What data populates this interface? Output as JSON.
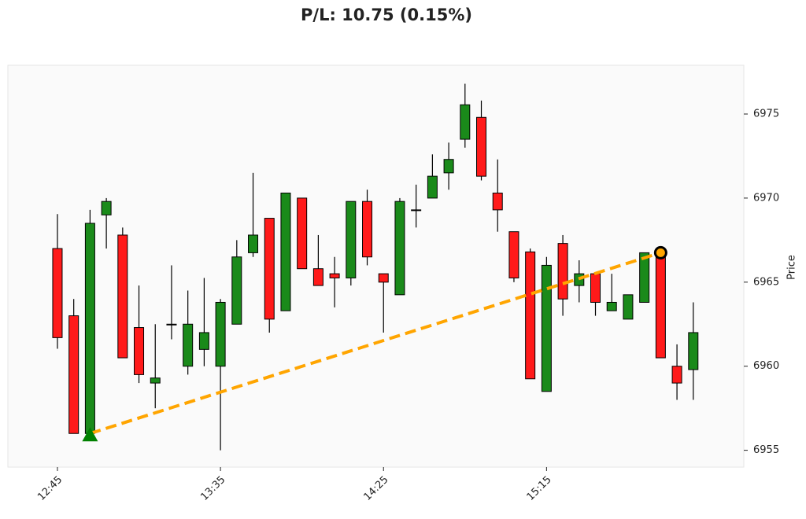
{
  "chart_data": {
    "type": "candlestick",
    "title": "P/L: 10.75 (0.15%)",
    "ylabel": "Price",
    "categories": [
      "12:45",
      null,
      null,
      null,
      null,
      null,
      null,
      null,
      null,
      null,
      "13:35",
      null,
      null,
      null,
      null,
      null,
      null,
      null,
      null,
      null,
      "14:25",
      null,
      null,
      null,
      null,
      null,
      null,
      null,
      null,
      null,
      "15:15",
      null,
      null,
      null,
      null,
      null,
      null,
      null,
      null,
      null
    ],
    "open": [
      6967.0,
      6963.0,
      6956.0,
      6969.0,
      6967.8,
      6962.3,
      6959.0,
      6962.5,
      6960.0,
      6961.0,
      6960.0,
      6962.5,
      6966.75,
      6968.8,
      6963.3,
      6970.0,
      6965.8,
      6965.5,
      6965.25,
      6969.8,
      6965.5,
      6964.25,
      6969.3,
      6970.0,
      6971.5,
      6973.5,
      6974.8,
      6970.3,
      6968.0,
      6966.8,
      6958.5,
      6967.3,
      6964.8,
      6965.5,
      6963.3,
      6962.8,
      6963.8,
      6966.75,
      6960.0,
      6959.8
    ],
    "high": [
      6969.05,
      6964.0,
      6969.3,
      6970.0,
      6968.25,
      6964.8,
      6962.5,
      6966.0,
      6964.5,
      6965.25,
      6964.0,
      6967.5,
      6971.5,
      6968.8,
      6970.3,
      6970.0,
      6967.8,
      6966.5,
      6969.8,
      6970.5,
      6965.5,
      6970.0,
      6970.8,
      6972.6,
      6973.3,
      6976.8,
      6975.8,
      6972.3,
      6968.0,
      6967.0,
      6966.5,
      6967.8,
      6966.3,
      6965.5,
      6965.5,
      6964.25,
      6966.75,
      6966.75,
      6961.3,
      6963.8
    ],
    "low": [
      6961.04,
      6956.0,
      6956.0,
      6967.0,
      6960.5,
      6959.0,
      6957.5,
      6961.6,
      6959.5,
      6960.0,
      6955.0,
      6962.5,
      6966.5,
      6962.0,
      6963.3,
      6965.8,
      6964.8,
      6963.5,
      6964.8,
      6966.0,
      6962.0,
      6964.25,
      6968.25,
      6970.0,
      6970.5,
      6973.0,
      6971.05,
      6968.0,
      6965.0,
      6959.25,
      6958.5,
      6963.0,
      6963.8,
      6963.0,
      6963.3,
      6962.8,
      6963.8,
      6960.5,
      6958.0,
      6958.0
    ],
    "close": [
      6961.7,
      6956.0,
      6968.5,
      6969.8,
      6960.5,
      6959.5,
      6959.3,
      6962.5,
      6962.5,
      6962.0,
      6963.8,
      6966.5,
      6967.8,
      6962.8,
      6970.3,
      6965.8,
      6964.8,
      6965.25,
      6969.8,
      6966.5,
      6965.0,
      6969.8,
      6969.3,
      6971.3,
      6972.3,
      6975.55,
      6971.3,
      6969.3,
      6965.25,
      6959.25,
      6966.0,
      6964.0,
      6965.5,
      6963.8,
      6963.8,
      6964.25,
      6966.75,
      6960.5,
      6959.0,
      6962.0
    ],
    "up_color": "#1a8a1a",
    "down_color": "#ff1a1a",
    "trade_color": "#ffa500",
    "trade": {
      "entry": {
        "index": 2,
        "price": 6956.0
      },
      "exit": {
        "index": 37,
        "price": 6966.75
      }
    },
    "xlim": [
      -3.04,
      42.1
    ],
    "ylim": [
      6954.0,
      6977.9
    ],
    "yticks": [
      6955,
      6960,
      6965,
      6970,
      6975
    ]
  }
}
